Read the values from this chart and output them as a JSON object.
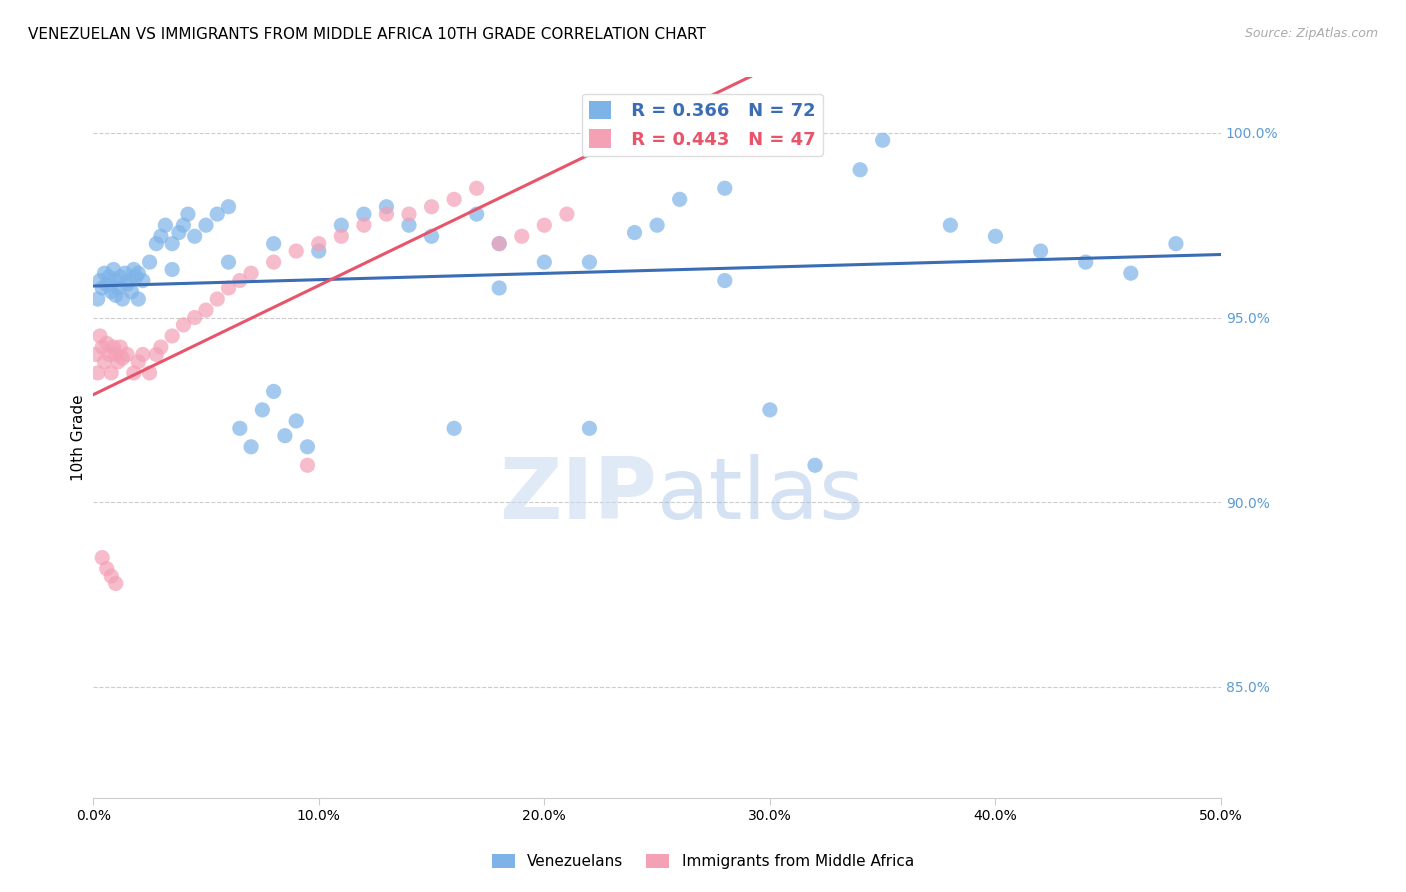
{
  "title": "VENEZUELAN VS IMMIGRANTS FROM MIDDLE AFRICA 10TH GRADE CORRELATION CHART",
  "source": "Source: ZipAtlas.com",
  "xlabel_vals": [
    0.0,
    10.0,
    20.0,
    30.0,
    40.0,
    50.0
  ],
  "ylabel_vals": [
    85.0,
    90.0,
    95.0,
    100.0
  ],
  "ylabel_label": "10th Grade",
  "xmin": 0.0,
  "xmax": 50.0,
  "ymin": 82.0,
  "ymax": 101.5,
  "blue_color": "#7EB3E8",
  "pink_color": "#F4A0B5",
  "blue_line_color": "#3B6DB5",
  "pink_line_color": "#E8546A",
  "blue_R": 0.366,
  "blue_N": 72,
  "pink_R": 0.443,
  "pink_N": 47,
  "legend_label_blue": "Venezuelans",
  "legend_label_pink": "Immigrants from Middle Africa",
  "watermark_zip": "ZIP",
  "watermark_atlas": "atlas",
  "blue_scatter_x": [
    0.2,
    0.3,
    0.4,
    0.5,
    0.6,
    0.7,
    0.8,
    0.9,
    1.0,
    1.1,
    1.2,
    1.3,
    1.4,
    1.5,
    1.6,
    1.7,
    1.8,
    1.9,
    2.0,
    2.2,
    2.5,
    2.8,
    3.0,
    3.2,
    3.5,
    3.8,
    4.0,
    4.2,
    4.5,
    5.0,
    5.5,
    6.0,
    6.5,
    7.0,
    7.5,
    8.0,
    8.5,
    9.0,
    9.5,
    10.0,
    11.0,
    12.0,
    13.0,
    14.0,
    15.0,
    16.0,
    17.0,
    18.0,
    20.0,
    22.0,
    24.0,
    26.0,
    28.0,
    30.0,
    32.0,
    35.0,
    38.0,
    40.0,
    42.0,
    44.0,
    46.0,
    48.0,
    34.0,
    28.0,
    25.0,
    22.0,
    18.0,
    8.0,
    6.0,
    3.5,
    2.0,
    1.0
  ],
  "blue_scatter_y": [
    95.5,
    96.0,
    95.8,
    96.2,
    95.9,
    96.1,
    95.7,
    96.3,
    96.0,
    95.8,
    96.1,
    95.5,
    96.2,
    95.9,
    96.0,
    95.7,
    96.3,
    96.1,
    96.2,
    96.0,
    96.5,
    97.0,
    97.2,
    97.5,
    97.0,
    97.3,
    97.5,
    97.8,
    97.2,
    97.5,
    97.8,
    98.0,
    92.0,
    91.5,
    92.5,
    93.0,
    91.8,
    92.2,
    91.5,
    96.8,
    97.5,
    97.8,
    98.0,
    97.5,
    97.2,
    92.0,
    97.8,
    97.0,
    96.5,
    92.0,
    97.3,
    98.2,
    98.5,
    92.5,
    91.0,
    99.8,
    97.5,
    97.2,
    96.8,
    96.5,
    96.2,
    97.0,
    99.0,
    96.0,
    97.5,
    96.5,
    95.8,
    97.0,
    96.5,
    96.3,
    95.5,
    95.6
  ],
  "pink_scatter_x": [
    0.1,
    0.2,
    0.3,
    0.4,
    0.5,
    0.6,
    0.7,
    0.8,
    0.9,
    1.0,
    1.1,
    1.2,
    1.3,
    1.5,
    1.8,
    2.0,
    2.2,
    2.5,
    2.8,
    3.0,
    3.5,
    4.0,
    4.5,
    5.0,
    5.5,
    6.0,
    6.5,
    7.0,
    8.0,
    9.0,
    10.0,
    11.0,
    12.0,
    13.0,
    14.0,
    15.0,
    16.0,
    17.0,
    18.0,
    19.0,
    20.0,
    21.0,
    0.4,
    0.6,
    0.8,
    1.0,
    9.5
  ],
  "pink_scatter_y": [
    94.0,
    93.5,
    94.5,
    94.2,
    93.8,
    94.3,
    94.0,
    93.5,
    94.2,
    94.0,
    93.8,
    94.2,
    93.9,
    94.0,
    93.5,
    93.8,
    94.0,
    93.5,
    94.0,
    94.2,
    94.5,
    94.8,
    95.0,
    95.2,
    95.5,
    95.8,
    96.0,
    96.2,
    96.5,
    96.8,
    97.0,
    97.2,
    97.5,
    97.8,
    97.8,
    98.0,
    98.2,
    98.5,
    97.0,
    97.2,
    97.5,
    97.8,
    88.5,
    88.2,
    88.0,
    87.8,
    91.0
  ],
  "title_fontsize": 11,
  "tick_fontsize": 10,
  "axis_label_fontsize": 11
}
